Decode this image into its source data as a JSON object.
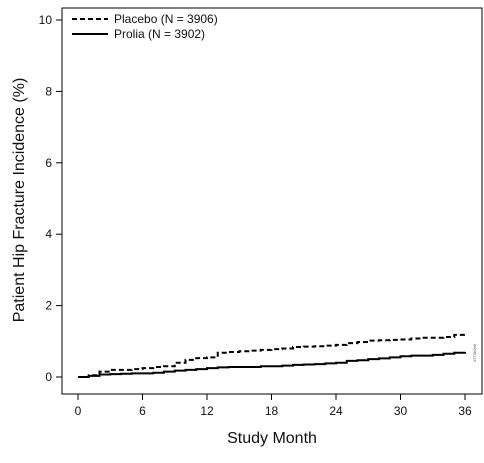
{
  "chart_data": {
    "type": "line",
    "title": "",
    "xlabel": "Study Month",
    "ylabel": "Patient Hip Fracture Incidence (%)",
    "xlim": [
      0,
      36
    ],
    "ylim": [
      0,
      10
    ],
    "xticks": [
      0,
      6,
      12,
      18,
      24,
      30,
      36
    ],
    "yticks": [
      0,
      2,
      4,
      6,
      8,
      10
    ],
    "grid": false,
    "legend": "top-left",
    "series": [
      {
        "name": "Placebo (N = 3906)",
        "style": "dashed",
        "color": "#000000",
        "x": [
          0,
          1,
          2,
          3,
          4,
          5,
          6,
          7,
          8,
          9,
          10,
          11,
          12,
          13,
          14,
          15,
          16,
          17,
          18,
          19,
          20,
          21,
          22,
          23,
          24,
          25,
          26,
          27,
          28,
          29,
          30,
          31,
          32,
          33,
          34,
          35,
          36
        ],
        "y": [
          0,
          0.05,
          0.15,
          0.2,
          0.2,
          0.22,
          0.25,
          0.28,
          0.3,
          0.4,
          0.48,
          0.53,
          0.55,
          0.68,
          0.7,
          0.72,
          0.74,
          0.76,
          0.78,
          0.8,
          0.84,
          0.85,
          0.86,
          0.88,
          0.9,
          0.95,
          0.98,
          1.02,
          1.03,
          1.04,
          1.05,
          1.08,
          1.1,
          1.1,
          1.12,
          1.18,
          1.2
        ]
      },
      {
        "name": "Prolia (N = 3902)",
        "style": "solid",
        "color": "#000000",
        "x": [
          0,
          1,
          2,
          3,
          4,
          5,
          6,
          7,
          8,
          9,
          10,
          11,
          12,
          13,
          14,
          15,
          16,
          17,
          18,
          19,
          20,
          21,
          22,
          23,
          24,
          25,
          26,
          27,
          28,
          29,
          30,
          31,
          32,
          33,
          34,
          35,
          36
        ],
        "y": [
          0,
          0.03,
          0.07,
          0.08,
          0.09,
          0.1,
          0.1,
          0.12,
          0.15,
          0.18,
          0.2,
          0.22,
          0.25,
          0.27,
          0.28,
          0.28,
          0.28,
          0.3,
          0.3,
          0.32,
          0.34,
          0.35,
          0.36,
          0.38,
          0.4,
          0.45,
          0.47,
          0.5,
          0.52,
          0.55,
          0.58,
          0.6,
          0.6,
          0.62,
          0.65,
          0.68,
          0.7
        ]
      }
    ],
    "watermark": "0773b0b8"
  }
}
